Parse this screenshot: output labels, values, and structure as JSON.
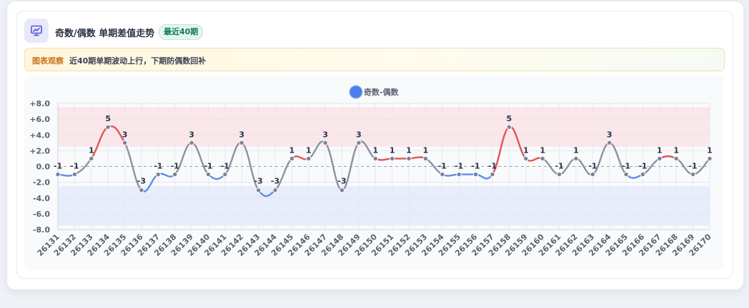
{
  "header": {
    "title": "奇数/偶数 单期差值走势",
    "badge": "最近40期",
    "icon": "chart-presentation-icon"
  },
  "observation": {
    "label": "图表观察",
    "text": "近40期单期波动上行，下期防偶数回补"
  },
  "colors": {
    "line": "#8a93a3",
    "up": "#e05656",
    "down": "#5b8ee6",
    "legend": "#4d7ef0",
    "zone_up": "#fbe3e6",
    "zone_down": "#e4eafb"
  },
  "chart_data": {
    "type": "line",
    "legend": [
      "奇数-偶数"
    ],
    "legend_position": "top-center",
    "categories": [
      "26131",
      "26132",
      "26133",
      "26134",
      "26135",
      "26136",
      "26137",
      "26138",
      "26139",
      "26140",
      "26141",
      "26142",
      "26143",
      "26144",
      "26145",
      "26146",
      "26147",
      "26148",
      "26149",
      "26150",
      "26151",
      "26152",
      "26153",
      "26154",
      "26155",
      "26156",
      "26157",
      "26158",
      "26159",
      "26160",
      "26161",
      "26162",
      "26163",
      "26164",
      "26165",
      "26166",
      "26167",
      "26168",
      "26169",
      "26170"
    ],
    "series": [
      {
        "name": "奇数-偶数",
        "values": [
          -1,
          -1,
          1,
          5,
          3,
          -3,
          -1,
          -1,
          3,
          -1,
          -1,
          3,
          -3,
          -3,
          1,
          1,
          3,
          -3,
          3,
          1,
          1,
          1,
          1,
          -1,
          -1,
          -1,
          -1,
          5,
          1,
          1,
          -1,
          1,
          -1,
          3,
          -1,
          -1,
          1,
          1,
          -1,
          1
        ]
      }
    ],
    "yticks": [
      "+8.0",
      "+6.0",
      "+4.0",
      "+2.0",
      "0.0",
      "-2.0",
      "-4.0",
      "-6.0",
      "-8.0"
    ],
    "ylim": [
      -8,
      8
    ],
    "bands": [
      {
        "from": 2.5,
        "to": 7.5,
        "kind": "up"
      },
      {
        "from": -7.5,
        "to": -2.5,
        "kind": "down"
      }
    ],
    "zero_line": "dashed",
    "grid": true
  }
}
